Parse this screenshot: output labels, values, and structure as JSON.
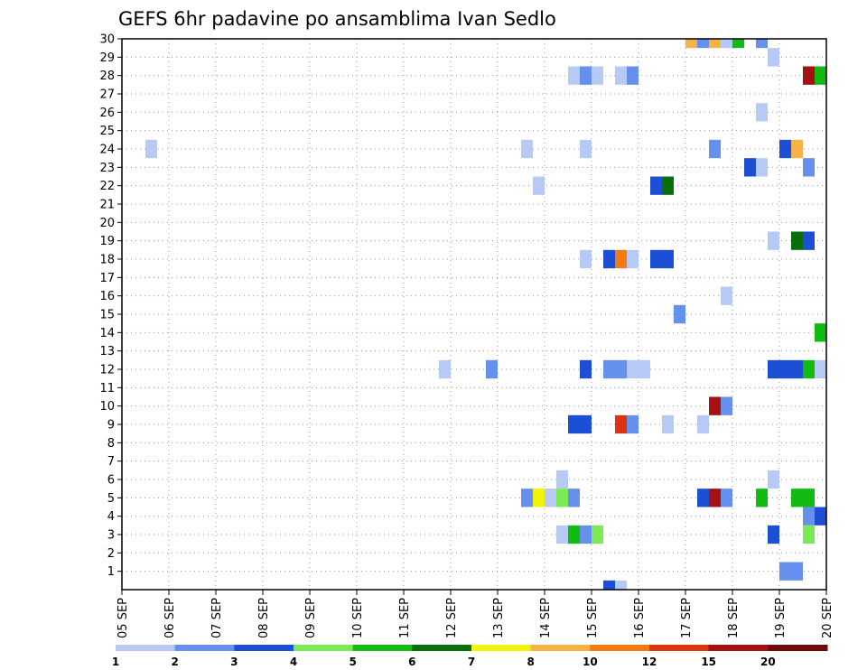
{
  "title": "GEFS 6hr padavine po ansamblima Ivan Sedlo",
  "chart_data": {
    "type": "heatmap",
    "title": "GEFS 6hr padavine po ansamblima Ivan Sedlo",
    "x_tick_labels": [
      "05 SEP",
      "06 SEP",
      "07 SEP",
      "08 SEP",
      "09 SEP",
      "10 SEP",
      "11 SEP",
      "12 SEP",
      "13 SEP",
      "14 SEP",
      "15 SEP",
      "16 SEP",
      "17 SEP",
      "18 SEP",
      "19 SEP",
      "20 SEP"
    ],
    "y_tick_labels": [
      "1",
      "2",
      "3",
      "4",
      "5",
      "6",
      "7",
      "8",
      "9",
      "10",
      "11",
      "12",
      "13",
      "14",
      "15",
      "16",
      "17",
      "18",
      "19",
      "20",
      "21",
      "22",
      "23",
      "24",
      "25",
      "26",
      "27",
      "28",
      "29",
      "30"
    ],
    "ylim": [
      0,
      30
    ],
    "step_hours": 6,
    "grid": true,
    "colorbar": {
      "position": "bottom",
      "thresholds": [
        1,
        2,
        3,
        4,
        5,
        6,
        7,
        8,
        10,
        12,
        15,
        20
      ],
      "colors": [
        "#b7c9f5",
        "#6690ee",
        "#1c4fd6",
        "#7bea55",
        "#11bb11",
        "#0a6e0a",
        "#f2f20a",
        "#f5b347",
        "#f27c11",
        "#dd3311",
        "#a31111",
        "#6e0a0a"
      ]
    },
    "cells": [
      {
        "member": 30,
        "day": 17.0,
        "class": 7
      },
      {
        "member": 30,
        "day": 17.25,
        "class": 1
      },
      {
        "member": 30,
        "day": 17.5,
        "class": 7
      },
      {
        "member": 30,
        "day": 17.75,
        "class": 0
      },
      {
        "member": 30,
        "day": 18.0,
        "class": 4
      },
      {
        "member": 30,
        "day": 18.5,
        "class": 1
      },
      {
        "member": 29,
        "day": 18.75,
        "class": 0
      },
      {
        "member": 28,
        "day": 14.5,
        "class": 0
      },
      {
        "member": 28,
        "day": 14.75,
        "class": 1
      },
      {
        "member": 28,
        "day": 15.0,
        "class": 0
      },
      {
        "member": 28,
        "day": 15.5,
        "class": 0
      },
      {
        "member": 28,
        "day": 15.75,
        "class": 1
      },
      {
        "member": 28,
        "day": 19.5,
        "class": 10
      },
      {
        "member": 28,
        "day": 19.75,
        "class": 4
      },
      {
        "member": 26,
        "day": 18.5,
        "class": 0
      },
      {
        "member": 24,
        "day": 5.5,
        "class": 0
      },
      {
        "member": 24,
        "day": 13.5,
        "class": 0
      },
      {
        "member": 24,
        "day": 14.75,
        "class": 0
      },
      {
        "member": 24,
        "day": 17.5,
        "class": 1
      },
      {
        "member": 24,
        "day": 19.0,
        "class": 2
      },
      {
        "member": 24,
        "day": 19.25,
        "class": 7
      },
      {
        "member": 23,
        "day": 18.25,
        "class": 2
      },
      {
        "member": 23,
        "day": 18.5,
        "class": 0
      },
      {
        "member": 23,
        "day": 19.5,
        "class": 1
      },
      {
        "member": 22,
        "day": 13.75,
        "class": 0
      },
      {
        "member": 22,
        "day": 16.25,
        "class": 2
      },
      {
        "member": 22,
        "day": 16.5,
        "class": 5
      },
      {
        "member": 19,
        "day": 18.75,
        "class": 0
      },
      {
        "member": 19,
        "day": 19.25,
        "class": 5
      },
      {
        "member": 19,
        "day": 19.5,
        "class": 2
      },
      {
        "member": 18,
        "day": 14.75,
        "class": 0
      },
      {
        "member": 18,
        "day": 15.25,
        "class": 2
      },
      {
        "member": 18,
        "day": 15.5,
        "class": 8
      },
      {
        "member": 18,
        "day": 15.75,
        "class": 0
      },
      {
        "member": 18,
        "day": 16.25,
        "class": 2
      },
      {
        "member": 18,
        "day": 16.5,
        "class": 2
      },
      {
        "member": 16,
        "day": 17.75,
        "class": 0
      },
      {
        "member": 15,
        "day": 16.75,
        "class": 1
      },
      {
        "member": 14,
        "day": 19.75,
        "class": 4
      },
      {
        "member": 12,
        "day": 11.75,
        "class": 0
      },
      {
        "member": 12,
        "day": 12.75,
        "class": 1
      },
      {
        "member": 12,
        "day": 14.75,
        "class": 2
      },
      {
        "member": 12,
        "day": 15.25,
        "class": 1
      },
      {
        "member": 12,
        "day": 15.5,
        "class": 1
      },
      {
        "member": 12,
        "day": 15.75,
        "class": 0
      },
      {
        "member": 12,
        "day": 16.0,
        "class": 0
      },
      {
        "member": 12,
        "day": 18.75,
        "class": 2
      },
      {
        "member": 12,
        "day": 19.0,
        "class": 2
      },
      {
        "member": 12,
        "day": 19.25,
        "class": 2
      },
      {
        "member": 12,
        "day": 19.5,
        "class": 4
      },
      {
        "member": 12,
        "day": 19.75,
        "class": 0
      },
      {
        "member": 10,
        "day": 17.5,
        "class": 10
      },
      {
        "member": 10,
        "day": 17.75,
        "class": 1
      },
      {
        "member": 9,
        "day": 14.5,
        "class": 2
      },
      {
        "member": 9,
        "day": 14.75,
        "class": 2
      },
      {
        "member": 9,
        "day": 15.5,
        "class": 9
      },
      {
        "member": 9,
        "day": 15.75,
        "class": 1
      },
      {
        "member": 9,
        "day": 16.5,
        "class": 0
      },
      {
        "member": 9,
        "day": 17.25,
        "class": 0
      },
      {
        "member": 6,
        "day": 14.25,
        "class": 0
      },
      {
        "member": 6,
        "day": 18.75,
        "class": 0
      },
      {
        "member": 5,
        "day": 13.5,
        "class": 1
      },
      {
        "member": 5,
        "day": 13.75,
        "class": 6
      },
      {
        "member": 5,
        "day": 14.0,
        "class": 0
      },
      {
        "member": 5,
        "day": 14.25,
        "class": 3
      },
      {
        "member": 5,
        "day": 14.5,
        "class": 1
      },
      {
        "member": 5,
        "day": 17.25,
        "class": 2
      },
      {
        "member": 5,
        "day": 17.5,
        "class": 10
      },
      {
        "member": 5,
        "day": 17.75,
        "class": 1
      },
      {
        "member": 5,
        "day": 18.5,
        "class": 4
      },
      {
        "member": 5,
        "day": 19.25,
        "class": 4
      },
      {
        "member": 5,
        "day": 19.5,
        "class": 4
      },
      {
        "member": 4,
        "day": 19.5,
        "class": 1
      },
      {
        "member": 4,
        "day": 19.75,
        "class": 2
      },
      {
        "member": 3,
        "day": 14.25,
        "class": 0
      },
      {
        "member": 3,
        "day": 14.5,
        "class": 4
      },
      {
        "member": 3,
        "day": 14.75,
        "class": 1
      },
      {
        "member": 3,
        "day": 15.0,
        "class": 3
      },
      {
        "member": 3,
        "day": 18.75,
        "class": 2
      },
      {
        "member": 3,
        "day": 19.5,
        "class": 3
      },
      {
        "member": 1,
        "day": 19.0,
        "class": 1
      },
      {
        "member": 1,
        "day": 19.25,
        "class": 1
      },
      {
        "member": 0,
        "day": 15.25,
        "class": 2
      },
      {
        "member": 0,
        "day": 15.5,
        "class": 0
      }
    ]
  }
}
